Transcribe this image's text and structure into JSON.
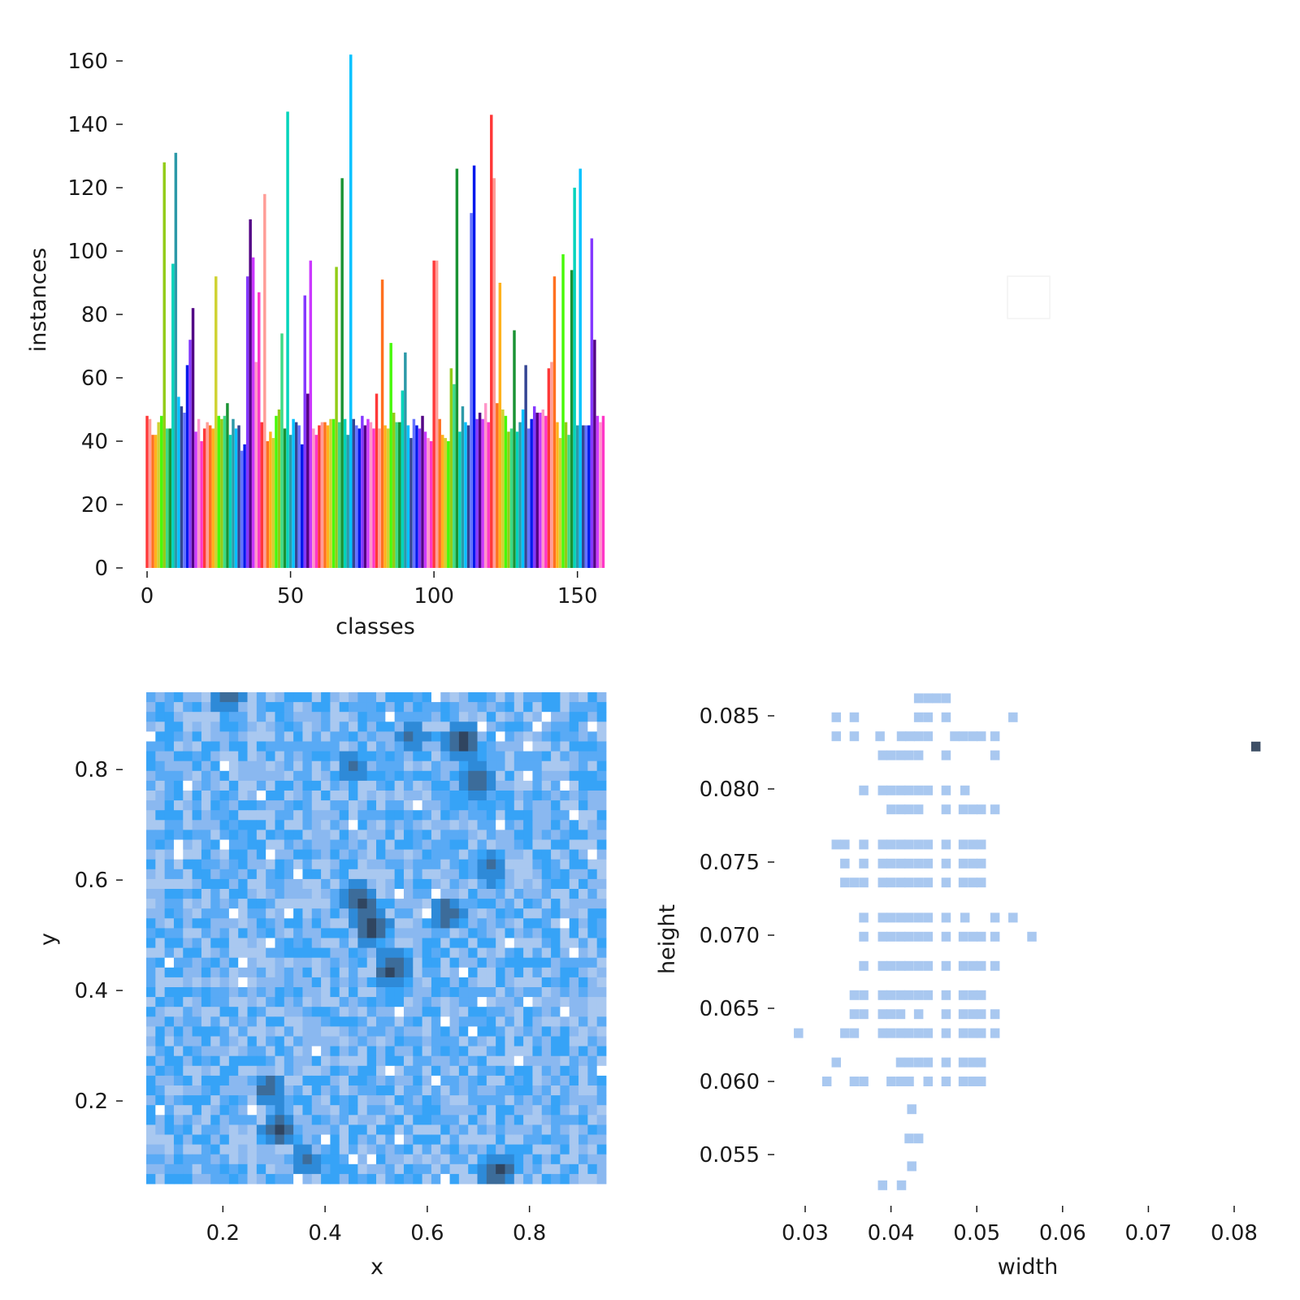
{
  "chart_data": [
    {
      "type": "bar",
      "panel": "top-left",
      "xlabel": "classes",
      "ylabel": "instances",
      "xlim": [
        -1,
        160
      ],
      "ylim": [
        0,
        165
      ],
      "xticks": [
        0,
        50,
        100,
        150
      ],
      "yticks": [
        0,
        20,
        40,
        60,
        80,
        100,
        120,
        140,
        160
      ],
      "xtick_labels": [
        "0",
        "50",
        "100",
        "150"
      ],
      "ytick_labels": [
        "0",
        "20",
        "40",
        "60",
        "80",
        "100",
        "120",
        "140",
        "160"
      ],
      "categories_range": [
        0,
        159
      ],
      "values": [
        48,
        47,
        42,
        42,
        46,
        48,
        128,
        44,
        44,
        96,
        131,
        54,
        51,
        49,
        64,
        72,
        82,
        43,
        47,
        40,
        44,
        46,
        45,
        44,
        92,
        48,
        47,
        48,
        52,
        42,
        47,
        44,
        45,
        37,
        39,
        92,
        110,
        98,
        65,
        87,
        46,
        118,
        40,
        43,
        41,
        48,
        50,
        74,
        44,
        144,
        42,
        47,
        46,
        45,
        39,
        86,
        55,
        97,
        44,
        42,
        45,
        46,
        46,
        45,
        47,
        47,
        95,
        46,
        123,
        47,
        42,
        162,
        47,
        45,
        44,
        48,
        45,
        47,
        46,
        44,
        55,
        44,
        91,
        45,
        44,
        71,
        49,
        46,
        46,
        56,
        68,
        45,
        41,
        47,
        45,
        44,
        48,
        43,
        41,
        40,
        97,
        97,
        47,
        42,
        41,
        40,
        63,
        58,
        126,
        43,
        51,
        46,
        45,
        112,
        127,
        47,
        49,
        47,
        52,
        46,
        143,
        123,
        52,
        90,
        50,
        48,
        43,
        44,
        75,
        43,
        46,
        50,
        64,
        44,
        47,
        51,
        49,
        49,
        50,
        48,
        63,
        65,
        92,
        46,
        41,
        99,
        46,
        42,
        94,
        120,
        45,
        126,
        45,
        45,
        45,
        104,
        72,
        48,
        46,
        48
      ],
      "colors": [
        "#ff3838",
        "#ff9d97",
        "#ff701f",
        "#ffb21d",
        "#cfd231",
        "#48f90a",
        "#92cc17",
        "#3ddb86",
        "#1a9334",
        "#00d4bb",
        "#2c99a8",
        "#00c2ff",
        "#344593",
        "#6473ff",
        "#0018ec",
        "#8438ff",
        "#520085",
        "#cb38ff",
        "#ff95c8",
        "#ff37c7"
      ]
    },
    {
      "type": "empty",
      "panel": "top-right",
      "color": "#f4f4f4"
    },
    {
      "type": "heatmap",
      "panel": "bottom-left",
      "xlabel": "x",
      "ylabel": "y",
      "xlim": [
        0.05,
        0.95
      ],
      "ylim": [
        0.05,
        0.94
      ],
      "xticks": [
        0.2,
        0.4,
        0.6,
        0.8
      ],
      "yticks": [
        0.2,
        0.4,
        0.6,
        0.8
      ],
      "xtick_labels": [
        "0.2",
        "0.4",
        "0.6",
        "0.8"
      ],
      "ytick_labels": [
        "0.2",
        "0.4",
        "0.6",
        "0.8"
      ],
      "bins": 50,
      "dense_regions": [
        {
          "x": 0.49,
          "y": 0.52,
          "level": 1.0
        },
        {
          "x": 0.47,
          "y": 0.56,
          "level": 0.9
        },
        {
          "x": 0.53,
          "y": 0.44,
          "level": 0.85
        },
        {
          "x": 0.67,
          "y": 0.85,
          "level": 0.9
        },
        {
          "x": 0.7,
          "y": 0.78,
          "level": 0.75
        },
        {
          "x": 0.57,
          "y": 0.86,
          "level": 0.6
        },
        {
          "x": 0.45,
          "y": 0.8,
          "level": 0.6
        },
        {
          "x": 0.64,
          "y": 0.54,
          "level": 0.75
        },
        {
          "x": 0.31,
          "y": 0.15,
          "level": 0.85
        },
        {
          "x": 0.29,
          "y": 0.22,
          "level": 0.7
        },
        {
          "x": 0.36,
          "y": 0.09,
          "level": 0.6
        },
        {
          "x": 0.74,
          "y": 0.07,
          "level": 0.85
        },
        {
          "x": 0.73,
          "y": 0.62,
          "level": 0.6
        },
        {
          "x": 0.21,
          "y": 0.93,
          "level": 0.7
        }
      ],
      "colors": [
        "#ffffff",
        "#a9c8f0",
        "#8ab8f0",
        "#59aaf5",
        "#36a3f7",
        "#2e8ad8",
        "#3c6c9a",
        "#304560"
      ]
    },
    {
      "type": "scatter",
      "panel": "bottom-right",
      "xlabel": "width",
      "ylabel": "height",
      "xlim": [
        0.0265,
        0.0835
      ],
      "ylim": [
        0.0525,
        0.087
      ],
      "xticks": [
        0.03,
        0.04,
        0.05,
        0.06,
        0.07,
        0.08
      ],
      "yticks": [
        0.055,
        0.06,
        0.065,
        0.07,
        0.075,
        0.08,
        0.085
      ],
      "xtick_labels": [
        "0.03",
        "0.04",
        "0.05",
        "0.06",
        "0.07",
        "0.08"
      ],
      "ytick_labels": [
        "0.055",
        "0.060",
        "0.065",
        "0.070",
        "0.075",
        "0.080",
        "0.085"
      ],
      "color": "#a9c8f0",
      "outlier_color": "#3e4f66",
      "rows": [
        {
          "height": 0.0862,
          "widths": [
            0.0432,
            0.0443,
            0.0453,
            0.0464
          ]
        },
        {
          "height": 0.0849,
          "widths": [
            0.0336,
            0.0357,
            0.0432,
            0.0443,
            0.0464,
            0.0542
          ]
        },
        {
          "height": 0.0836,
          "widths": [
            0.0336,
            0.0357,
            0.0387,
            0.0412,
            0.0422,
            0.0432,
            0.0443,
            0.0474,
            0.0484,
            0.0495,
            0.0505,
            0.0521
          ]
        },
        {
          "height": 0.0823,
          "widths": [
            0.039,
            0.04,
            0.0411,
            0.0421,
            0.0432,
            0.0464,
            0.0521
          ]
        },
        {
          "height": 0.0799,
          "widths": [
            0.0368,
            0.039,
            0.04,
            0.0411,
            0.0421,
            0.0432,
            0.0443,
            0.0464,
            0.0486
          ]
        },
        {
          "height": 0.0786,
          "widths": [
            0.04,
            0.0411,
            0.0421,
            0.0432,
            0.0464,
            0.0484,
            0.0495,
            0.0505,
            0.0521
          ]
        },
        {
          "height": 0.0762,
          "widths": [
            0.0336,
            0.0346,
            0.0368,
            0.039,
            0.04,
            0.0411,
            0.0421,
            0.0432,
            0.0443,
            0.0464,
            0.0484,
            0.0495,
            0.0505
          ]
        },
        {
          "height": 0.0749,
          "widths": [
            0.0346,
            0.0368,
            0.039,
            0.04,
            0.0411,
            0.0421,
            0.0432,
            0.0443,
            0.0464,
            0.0484,
            0.0495,
            0.0505
          ]
        },
        {
          "height": 0.0736,
          "widths": [
            0.0346,
            0.0357,
            0.0368,
            0.039,
            0.04,
            0.0411,
            0.0421,
            0.0432,
            0.0443,
            0.0464,
            0.0484,
            0.0495,
            0.0505
          ]
        },
        {
          "height": 0.0712,
          "widths": [
            0.0368,
            0.039,
            0.04,
            0.0411,
            0.0421,
            0.0432,
            0.0443,
            0.0464,
            0.0486,
            0.0521,
            0.0542
          ]
        },
        {
          "height": 0.0699,
          "widths": [
            0.0368,
            0.039,
            0.04,
            0.0411,
            0.0421,
            0.0432,
            0.0443,
            0.0464,
            0.0484,
            0.0495,
            0.0505,
            0.0521,
            0.0564
          ]
        },
        {
          "height": 0.0679,
          "widths": [
            0.0368,
            0.039,
            0.04,
            0.0411,
            0.0421,
            0.0432,
            0.0443,
            0.0464,
            0.0484,
            0.0495,
            0.0505,
            0.0521
          ]
        },
        {
          "height": 0.0659,
          "widths": [
            0.0357,
            0.0368,
            0.039,
            0.04,
            0.0411,
            0.0421,
            0.0432,
            0.0443,
            0.0464,
            0.0484,
            0.0495,
            0.0505
          ]
        },
        {
          "height": 0.0646,
          "widths": [
            0.0357,
            0.0368,
            0.039,
            0.04,
            0.0411,
            0.0432,
            0.0464,
            0.0484,
            0.0495,
            0.0505,
            0.0521
          ]
        },
        {
          "height": 0.0633,
          "widths": [
            0.0292,
            0.0346,
            0.0357,
            0.039,
            0.04,
            0.0411,
            0.0421,
            0.0432,
            0.0443,
            0.0464,
            0.0484,
            0.0495,
            0.0505,
            0.0521
          ]
        },
        {
          "height": 0.0613,
          "widths": [
            0.0336,
            0.0411,
            0.0421,
            0.0432,
            0.0443,
            0.0464,
            0.0484,
            0.0495,
            0.0505
          ]
        },
        {
          "height": 0.06,
          "widths": [
            0.0325,
            0.0357,
            0.0368,
            0.04,
            0.0411,
            0.0421,
            0.0443,
            0.0464,
            0.0484,
            0.0495,
            0.0505
          ]
        },
        {
          "height": 0.0581,
          "widths": [
            0.0424
          ]
        },
        {
          "height": 0.0561,
          "widths": [
            0.0421,
            0.0432
          ]
        },
        {
          "height": 0.0542,
          "widths": [
            0.0424
          ]
        },
        {
          "height": 0.0529,
          "widths": [
            0.039,
            0.0412
          ]
        }
      ],
      "outliers": [
        {
          "width": 0.0825,
          "height": 0.0829
        }
      ]
    }
  ]
}
